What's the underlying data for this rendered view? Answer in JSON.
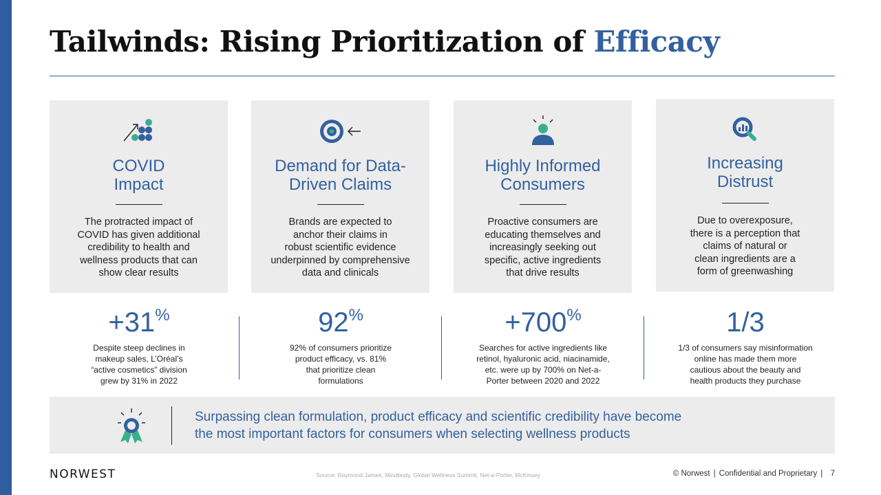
{
  "slide": {
    "title_prefix": "Tailwinds: Rising Prioritization of ",
    "title_accent": "Efficacy",
    "accent_color": "#33609f",
    "teal_color": "#3aaf8f"
  },
  "cards": [
    {
      "icon": "growth-arrow-dots-icon",
      "heading_line1": "COVID",
      "heading_line2": "Impact",
      "body_lines": [
        "The protracted impact of",
        "COVID has given additional",
        "credibility to health and",
        "wellness products that can",
        "show clear results"
      ]
    },
    {
      "icon": "target-arrow-icon",
      "heading_line1": "Demand for Data-",
      "heading_line2": "Driven Claims",
      "body_lines": [
        "Brands are expected to",
        "anchor their claims in",
        "robust scientific evidence",
        "underpinned by comprehensive",
        "data and clinicals"
      ]
    },
    {
      "icon": "informed-person-icon",
      "heading_line1": "Highly Informed",
      "heading_line2": "Consumers",
      "body_lines": [
        "Proactive consumers are",
        "educating themselves and",
        "increasingly seeking out",
        "specific, active ingredients",
        "that drive results"
      ]
    },
    {
      "icon": "magnifier-chart-icon",
      "heading_line1": "Increasing",
      "heading_line2": "Distrust",
      "body_lines": [
        "Due to overexposure,",
        "there is a perception that",
        "claims of natural or",
        "clean ingredients are a",
        "form of greenwashing"
      ]
    }
  ],
  "stats": [
    {
      "value": "+31",
      "suffix": "%",
      "desc_lines": [
        "Despite steep declines in",
        "makeup sales, L’Oréal’s",
        "“active cosmetics” division",
        "grew by 31% in 2022"
      ]
    },
    {
      "value": "92",
      "suffix": "%",
      "desc_lines": [
        "92% of consumers prioritize",
        "product efficacy, vs. 81%",
        "that prioritize clean",
        "formulations"
      ]
    },
    {
      "value": "+700",
      "suffix": "%",
      "desc_lines": [
        "Searches for active ingredients like",
        "retinol, hyaluronic acid, niacinamide,",
        "etc. were up by 700% on Net-a-",
        "Porter between 2020 and 2022"
      ]
    },
    {
      "value": "1/3",
      "suffix": "",
      "desc_lines": [
        "1/3 of consumers say misinformation",
        "online has made them more",
        "cautious about the beauty and",
        "health products they purchase"
      ]
    }
  ],
  "callout": {
    "icon": "award-ribbon-icon",
    "line1": "Surpassing clean formulation, product efficacy and scientific credibility have become",
    "line2": "the most important factors for consumers when selecting wellness products"
  },
  "footer": {
    "brand": "NORWEST",
    "source": "Source: Raymond James, Mindbody, Global Wellness Summit, Net-a-Porter, McKinsey",
    "copyright": "© Norwest",
    "confidential": "Confidential and Proprietary",
    "page_number": "7"
  }
}
